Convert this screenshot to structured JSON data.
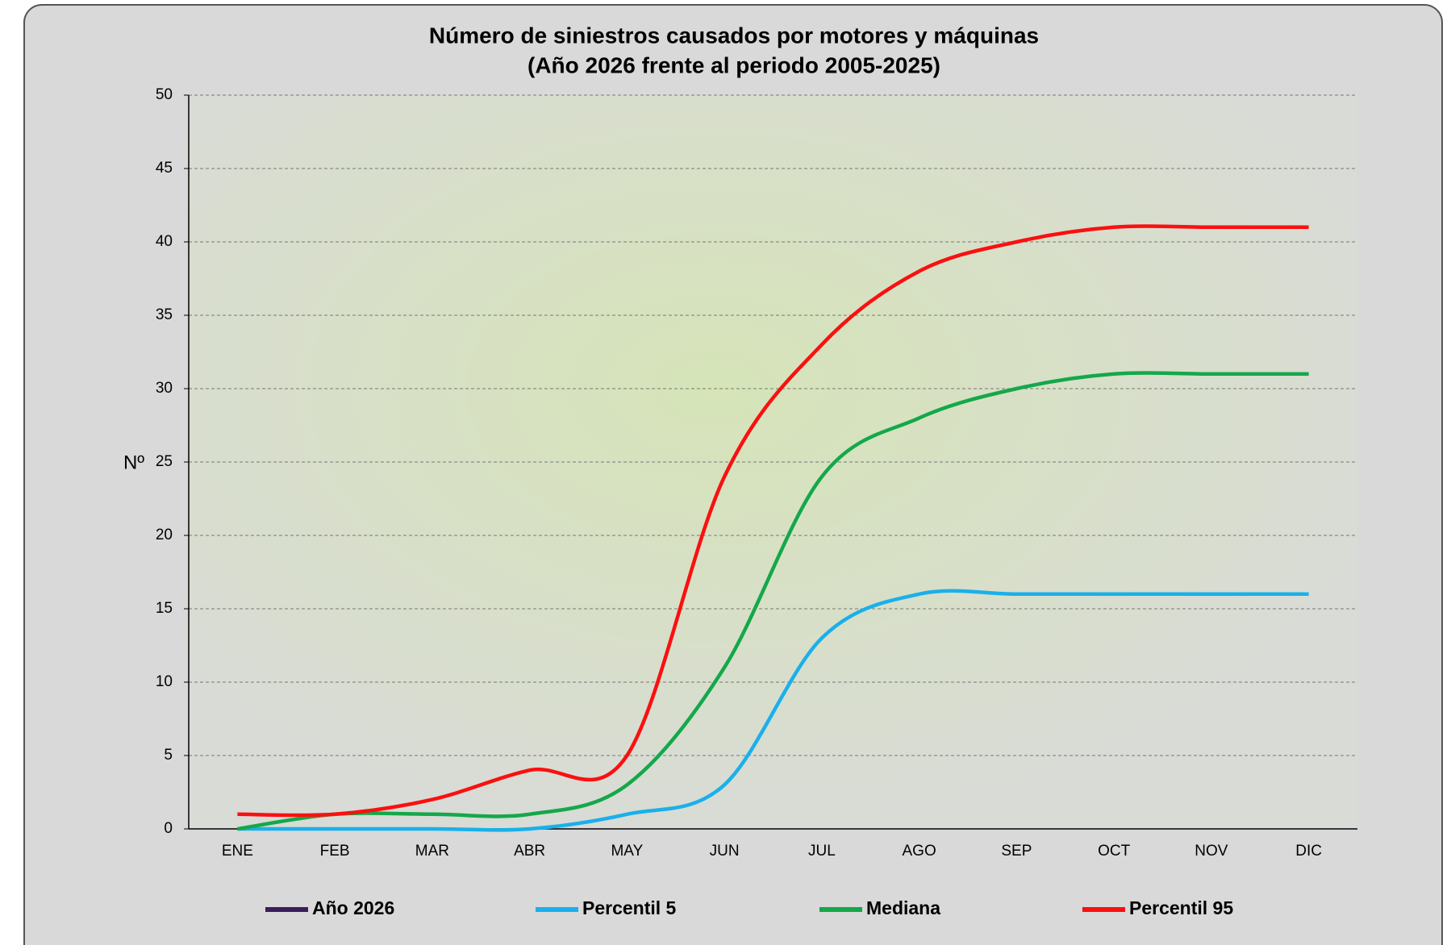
{
  "chart_data": {
    "type": "line",
    "title": "Número de siniestros causados por motores y máquinas",
    "subtitle": "(Año 2026 frente al periodo 2005-2025)",
    "y_label": "Nº",
    "categories": [
      "ENE",
      "FEB",
      "MAR",
      "ABR",
      "MAY",
      "JUN",
      "JUL",
      "AGO",
      "SEP",
      "OCT",
      "NOV",
      "DIC"
    ],
    "series": [
      {
        "name": "Año 2026",
        "color": "#3a1f5c",
        "values": [
          null,
          null,
          null,
          null,
          null,
          null,
          null,
          null,
          null,
          null,
          null,
          null
        ]
      },
      {
        "name": "Percentil 5",
        "color": "#1ab0ea",
        "values": [
          0,
          0,
          0,
          0,
          1,
          3,
          13,
          16,
          16,
          16,
          16,
          16
        ]
      },
      {
        "name": "Mediana",
        "color": "#14a84a",
        "values": [
          0,
          1,
          1,
          1,
          3,
          11,
          24,
          28,
          30,
          31,
          31,
          31
        ]
      },
      {
        "name": "Percentil 95",
        "color": "#fa1010",
        "values": [
          1,
          1,
          2,
          4,
          5,
          24,
          33,
          38,
          40,
          41,
          41,
          41
        ]
      }
    ],
    "ylim": [
      0,
      50
    ],
    "yticks": [
      0,
      5,
      10,
      15,
      20,
      25,
      30,
      35,
      40,
      45,
      50
    ],
    "grid": true,
    "legend": "bottom"
  }
}
